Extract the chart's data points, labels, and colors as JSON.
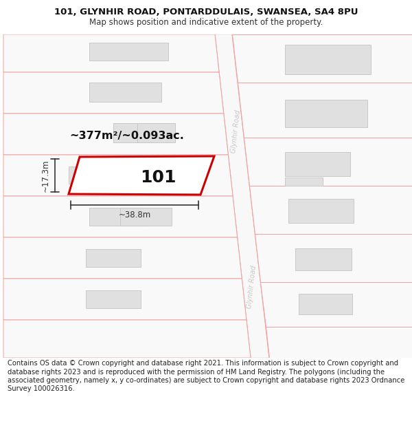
{
  "title_line1": "101, GLYNHIR ROAD, PONTARDDULAIS, SWANSEA, SA4 8PU",
  "title_line2": "Map shows position and indicative extent of the property.",
  "footer_text": "Contains OS data © Crown copyright and database right 2021. This information is subject to Crown copyright and database rights 2023 and is reproduced with the permission of HM Land Registry. The polygons (including the associated geometry, namely x, y co-ordinates) are subject to Crown copyright and database rights 2023 Ordnance Survey 100026316.",
  "area_label": "~377m²/~0.093ac.",
  "width_label": "~38.8m",
  "height_label": "~17.3m",
  "plot_number": "101",
  "bg_color": "#ffffff",
  "strip_fill": "#f9f9f9",
  "strip_edge": "#f0a0a0",
  "road_fill": "#f5f5f5",
  "road_edge": "#e0e0e0",
  "building_fill": "#e0e0e0",
  "building_edge": "#c8c8c8",
  "highlight_fill": "#ffffff",
  "highlight_edge": "#cc0000",
  "road_label_color": "#c8c8c8",
  "dim_color": "#333333",
  "text_color": "#111111"
}
